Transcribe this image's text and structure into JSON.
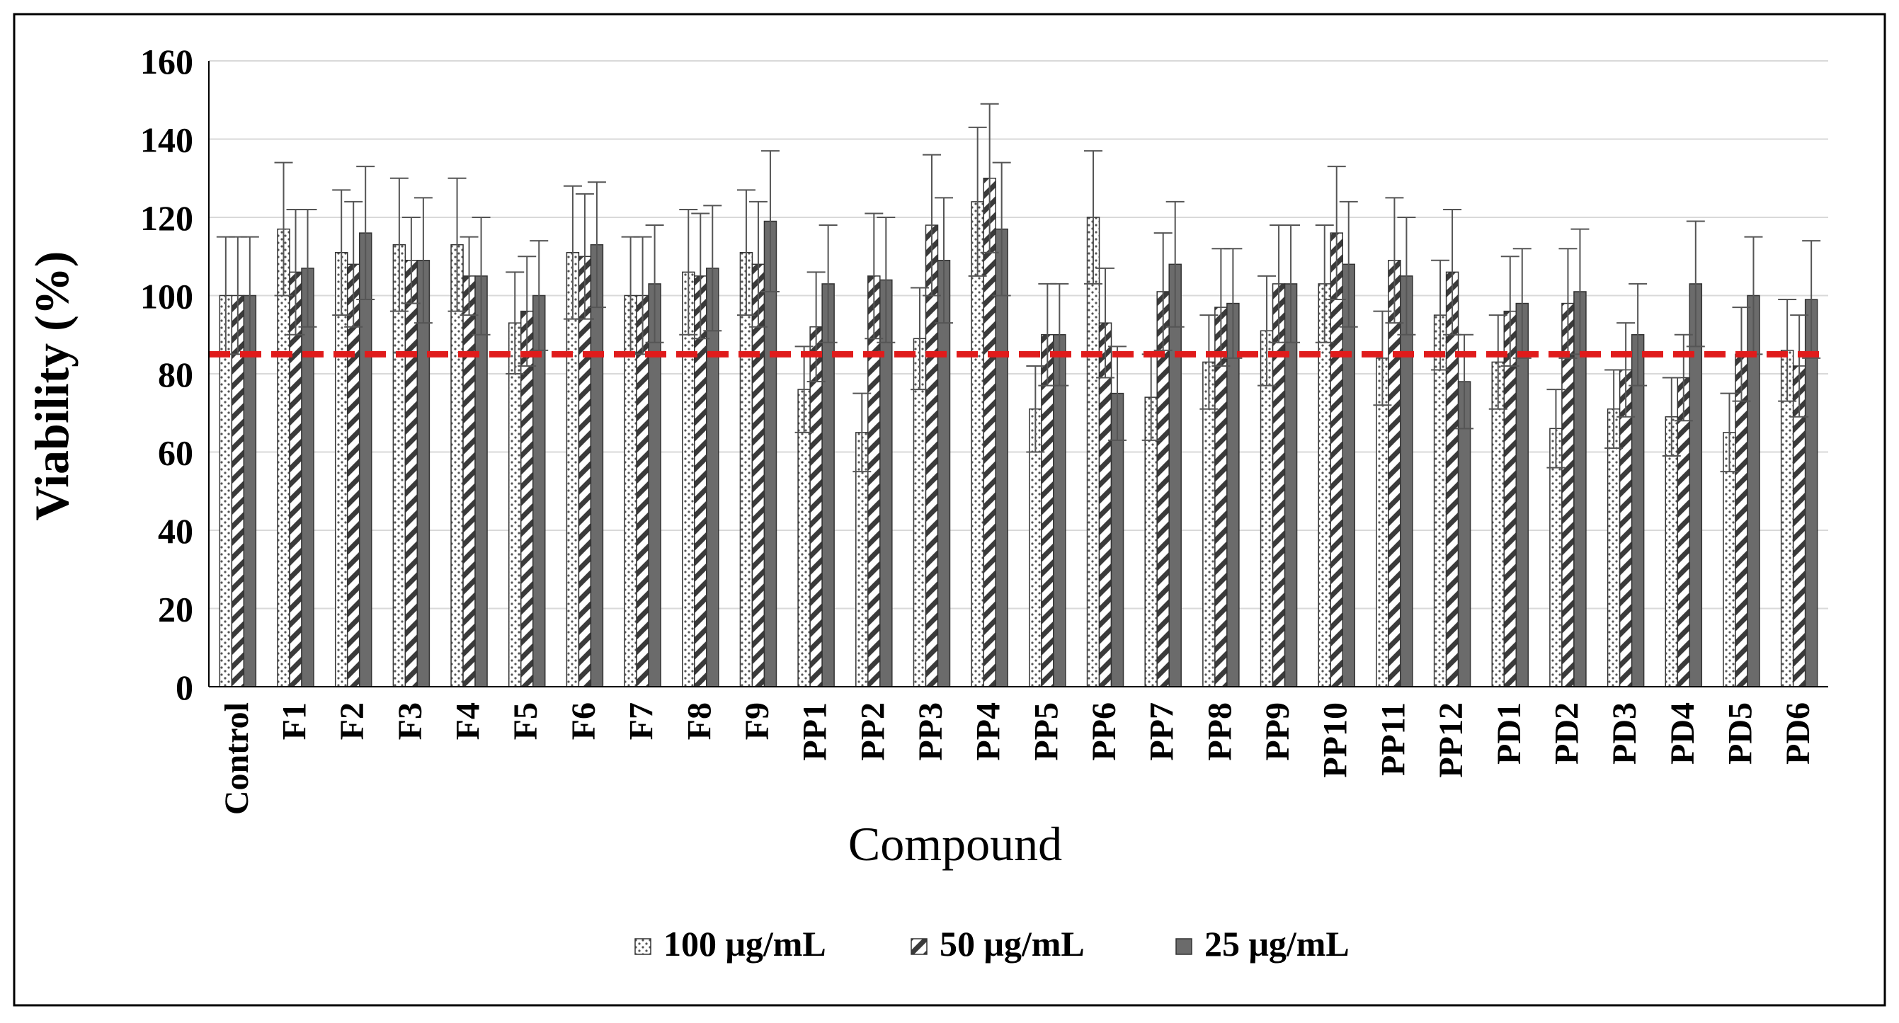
{
  "chart_data": {
    "type": "bar",
    "title": "",
    "xlabel": "Compound",
    "ylabel": "Viability (%)",
    "ylim": [
      0,
      160
    ],
    "yticks": [
      "0",
      "20",
      "40",
      "60",
      "80",
      "100",
      "120",
      "140",
      "160"
    ],
    "grid": true,
    "legend_position": "bottom",
    "threshold": 85,
    "categories": [
      "Control",
      "F1",
      "F2",
      "F3",
      "F4",
      "F5",
      "F6",
      "F7",
      "F8",
      "F9",
      "PP1",
      "PP2",
      "PP3",
      "PP4",
      "PP5",
      "PP6",
      "PP7",
      "PP8",
      "PP9",
      "PP10",
      "PP11",
      "PP12",
      "PD1",
      "PD2",
      "PD3",
      "PD4",
      "PD5",
      "PD6"
    ],
    "series": [
      {
        "name": "100 μg/mL",
        "pattern": "dots",
        "values": [
          100,
          117,
          111,
          113,
          113,
          93,
          111,
          100,
          106,
          111,
          76,
          65,
          89,
          124,
          71,
          120,
          74,
          83,
          91,
          103,
          84,
          95,
          83,
          66,
          71,
          69,
          65,
          86
        ],
        "errors": [
          15,
          17,
          16,
          17,
          17,
          13,
          17,
          15,
          16,
          16,
          11,
          10,
          13,
          19,
          11,
          17,
          11,
          12,
          14,
          15,
          12,
          14,
          12,
          10,
          10,
          10,
          10,
          13
        ]
      },
      {
        "name": "50 μg/mL",
        "pattern": "hatch",
        "values": [
          100,
          106,
          108,
          109,
          105,
          96,
          110,
          100,
          105,
          108,
          92,
          105,
          118,
          130,
          90,
          93,
          101,
          97,
          103,
          116,
          109,
          106,
          96,
          98,
          81,
          79,
          85,
          82
        ],
        "errors": [
          15,
          16,
          16,
          11,
          10,
          14,
          16,
          15,
          16,
          16,
          14,
          16,
          18,
          19,
          13,
          14,
          15,
          15,
          15,
          17,
          16,
          16,
          14,
          14,
          12,
          11,
          12,
          13
        ]
      },
      {
        "name": "25 μg/mL",
        "pattern": "solid",
        "values": [
          100,
          107,
          116,
          109,
          105,
          100,
          113,
          103,
          107,
          119,
          103,
          104,
          109,
          117,
          90,
          75,
          108,
          98,
          103,
          108,
          105,
          78,
          98,
          101,
          90,
          103,
          100,
          99
        ],
        "errors": [
          15,
          15,
          17,
          16,
          15,
          14,
          16,
          15,
          16,
          18,
          15,
          16,
          16,
          17,
          13,
          12,
          16,
          14,
          15,
          16,
          15,
          12,
          14,
          16,
          13,
          16,
          15,
          15
        ]
      }
    ]
  },
  "colors": {
    "bar_solid": "#6b6b6b",
    "bar_dark": "#4a4a4a",
    "threshold_line": "#e01b1b",
    "grid": "#d9d9d9",
    "axis": "#000000"
  }
}
